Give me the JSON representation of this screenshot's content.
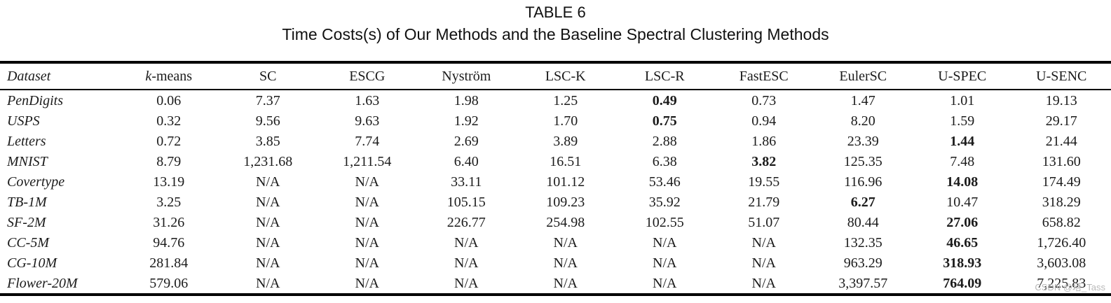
{
  "caption": {
    "label": "TABLE 6",
    "title": "Time Costs(s) of Our Methods and the Baseline Spectral Clustering Methods"
  },
  "table": {
    "columns": [
      {
        "key": "dataset",
        "label": "Dataset",
        "italic": true
      },
      {
        "key": "k-means",
        "label": "k-means",
        "italic_first": true
      },
      {
        "key": "sc",
        "label": "SC"
      },
      {
        "key": "escg",
        "label": "ESCG"
      },
      {
        "key": "nystrom",
        "label": "Nyström"
      },
      {
        "key": "lsc-k",
        "label": "LSC-K"
      },
      {
        "key": "lsc-r",
        "label": "LSC-R"
      },
      {
        "key": "fastesc",
        "label": "FastESC"
      },
      {
        "key": "eulersc",
        "label": "EulerSC"
      },
      {
        "key": "u-spec",
        "label": "U-SPEC"
      },
      {
        "key": "u-senc",
        "label": "U-SENC"
      }
    ],
    "rows": [
      {
        "dataset": "PenDigits",
        "values": [
          "0.06",
          "7.37",
          "1.63",
          "1.98",
          "1.25",
          "0.49",
          "0.73",
          "1.47",
          "1.01",
          "19.13"
        ],
        "bold_index": 5
      },
      {
        "dataset": "USPS",
        "values": [
          "0.32",
          "9.56",
          "9.63",
          "1.92",
          "1.70",
          "0.75",
          "0.94",
          "8.20",
          "1.59",
          "29.17"
        ],
        "bold_index": 5
      },
      {
        "dataset": "Letters",
        "values": [
          "0.72",
          "3.85",
          "7.74",
          "2.69",
          "3.89",
          "2.88",
          "1.86",
          "23.39",
          "1.44",
          "21.44"
        ],
        "bold_index": 8
      },
      {
        "dataset": "MNIST",
        "values": [
          "8.79",
          "1,231.68",
          "1,211.54",
          "6.40",
          "16.51",
          "6.38",
          "3.82",
          "125.35",
          "7.48",
          "131.60"
        ],
        "bold_index": 6
      },
      {
        "dataset": "Covertype",
        "values": [
          "13.19",
          "N/A",
          "N/A",
          "33.11",
          "101.12",
          "53.46",
          "19.55",
          "116.96",
          "14.08",
          "174.49"
        ],
        "bold_index": 8
      },
      {
        "dataset": "TB-1M",
        "values": [
          "3.25",
          "N/A",
          "N/A",
          "105.15",
          "109.23",
          "35.92",
          "21.79",
          "6.27",
          "10.47",
          "318.29"
        ],
        "bold_index": 7
      },
      {
        "dataset": "SF-2M",
        "values": [
          "31.26",
          "N/A",
          "N/A",
          "226.77",
          "254.98",
          "102.55",
          "51.07",
          "80.44",
          "27.06",
          "658.82"
        ],
        "bold_index": 8
      },
      {
        "dataset": "CC-5M",
        "values": [
          "94.76",
          "N/A",
          "N/A",
          "N/A",
          "N/A",
          "N/A",
          "N/A",
          "132.35",
          "46.65",
          "1,726.40"
        ],
        "bold_index": 8
      },
      {
        "dataset": "CG-10M",
        "values": [
          "281.84",
          "N/A",
          "N/A",
          "N/A",
          "N/A",
          "N/A",
          "N/A",
          "963.29",
          "318.93",
          "3,603.08"
        ],
        "bold_index": 8
      },
      {
        "dataset": "Flower-20M",
        "values": [
          "579.06",
          "N/A",
          "N/A",
          "N/A",
          "N/A",
          "N/A",
          "N/A",
          "3,397.57",
          "764.09",
          "7,225.83"
        ],
        "bold_index": 8
      }
    ]
  },
  "watermark": "CSDN @塔_Tass"
}
